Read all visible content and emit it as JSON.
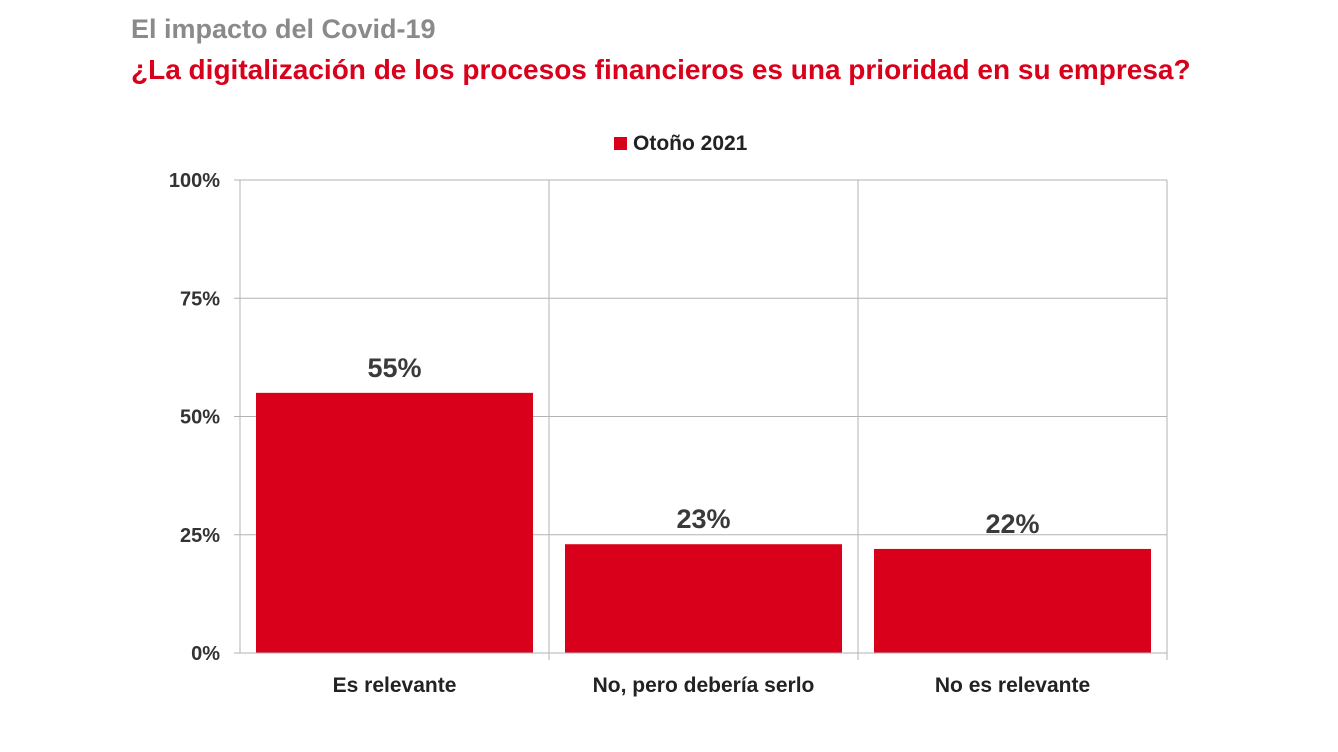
{
  "header": {
    "supertitle": "El impacto del Covid-19",
    "title": "¿La digitalización de los procesos financieros es una prioridad en su empresa?"
  },
  "chart_data": {
    "type": "bar",
    "title": "¿La digitalización de los procesos financieros es una prioridad en su empresa?",
    "categories": [
      "Es relevante",
      "No, pero debería serlo",
      "No es relevante"
    ],
    "series": [
      {
        "name": "Otoño 2021",
        "values": [
          55,
          23,
          22
        ],
        "labels": [
          "55%",
          "23%",
          "22%"
        ]
      }
    ],
    "ylim": [
      0,
      100
    ],
    "yticks": [
      0,
      25,
      50,
      75,
      100
    ],
    "ytick_labels": [
      "0%",
      "25%",
      "50%",
      "75%",
      "100%"
    ],
    "xlabel": "",
    "ylabel": "",
    "grid": true,
    "legend": "top-center",
    "colors": {
      "bar": "#d9001b",
      "grid": "#b3b3b3",
      "supertitle": "#8a8a8a",
      "title": "#d9001b"
    }
  }
}
